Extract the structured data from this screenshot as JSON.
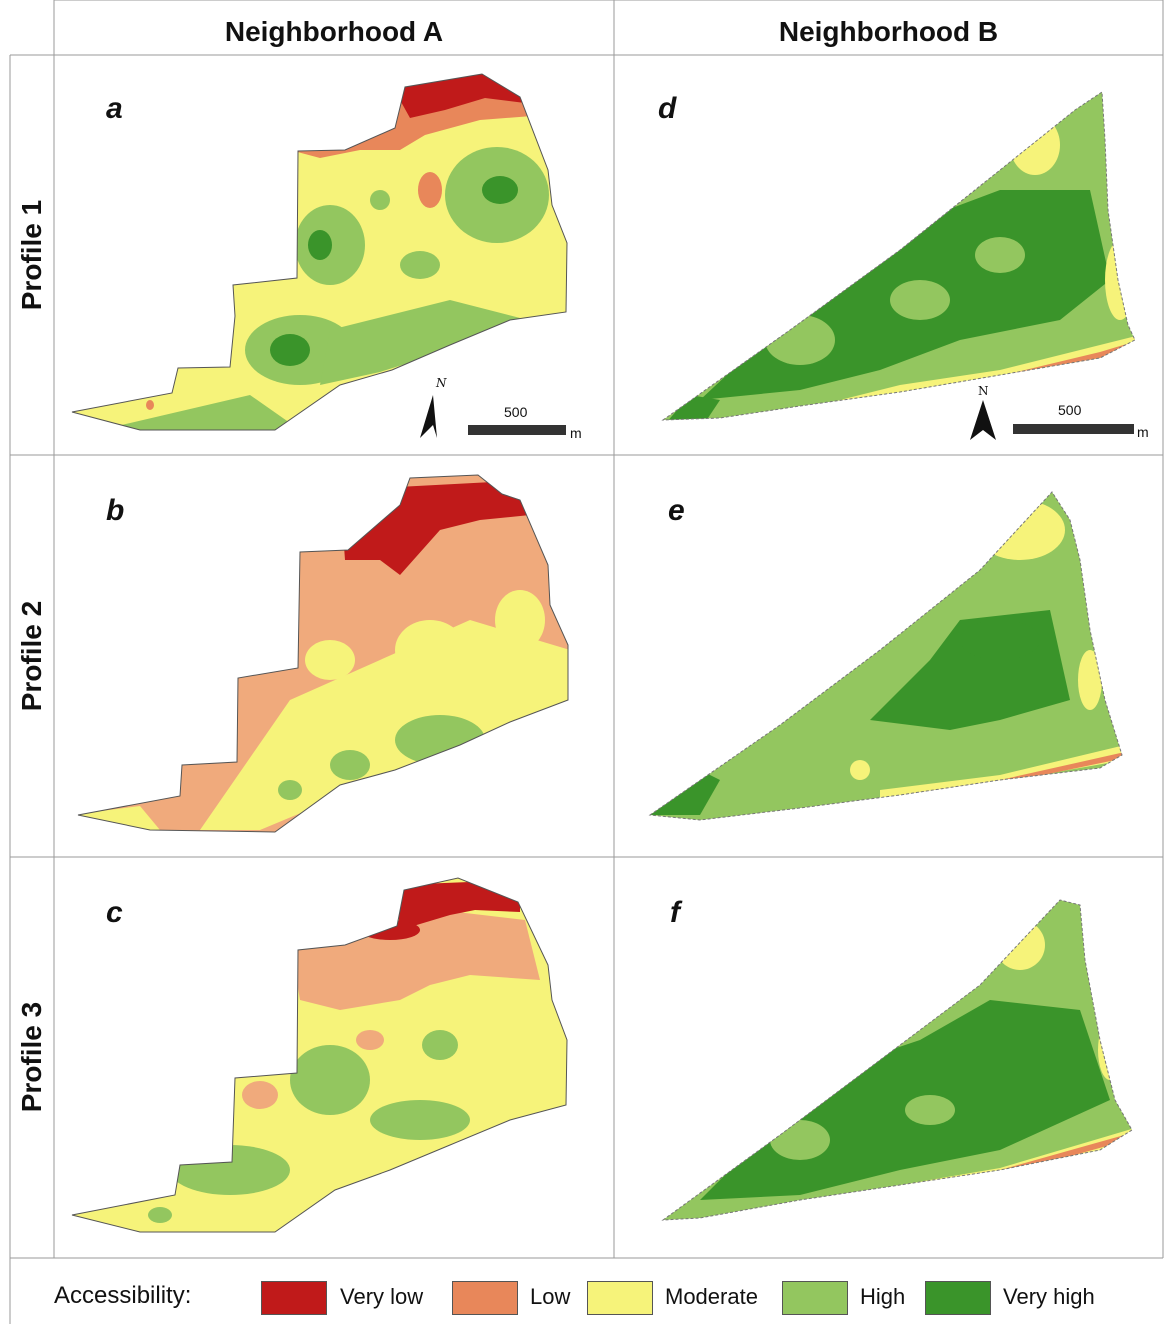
{
  "columns": [
    "Neighborhood A",
    "Neighborhood B"
  ],
  "rows": [
    "Profile 1",
    "Profile 2",
    "Profile 3"
  ],
  "panels": [
    {
      "letter": "a",
      "column": "Neighborhood A",
      "row": "Profile 1"
    },
    {
      "letter": "d",
      "column": "Neighborhood B",
      "row": "Profile 1"
    },
    {
      "letter": "b",
      "column": "Neighborhood A",
      "row": "Profile 2"
    },
    {
      "letter": "e",
      "column": "Neighborhood B",
      "row": "Profile 2"
    },
    {
      "letter": "c",
      "column": "Neighborhood A",
      "row": "Profile 3"
    },
    {
      "letter": "f",
      "column": "Neighborhood B",
      "row": "Profile 3"
    }
  ],
  "scale_bar": {
    "value": "500",
    "unit": "m"
  },
  "north_arrow": {
    "label": "N"
  },
  "legend": {
    "title": "Accessibility:",
    "items": [
      {
        "label": "Very low",
        "color": "#c01a1a"
      },
      {
        "label": "Low",
        "color": "#e8875a"
      },
      {
        "label": "Moderate",
        "color": "#f6f37a"
      },
      {
        "label": "High",
        "color": "#93c65f"
      },
      {
        "label": "Very high",
        "color": "#3a942a"
      }
    ]
  }
}
